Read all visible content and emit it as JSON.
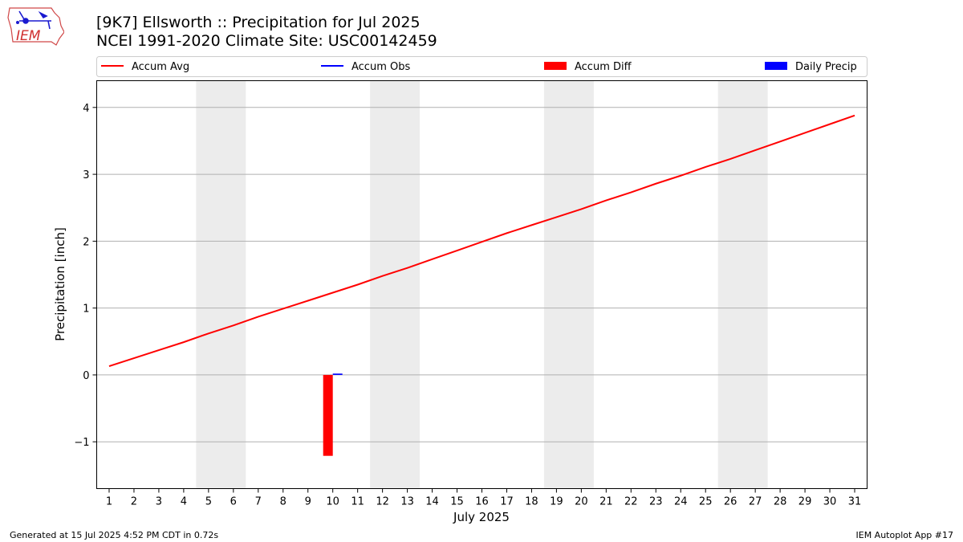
{
  "header": {
    "title_line1": "[9K7] Ellsworth :: Precipitation for Jul 2025",
    "title_line2": "NCEI 1991-2020 Climate Site: USC00142459"
  },
  "logo": {
    "text": "IEM"
  },
  "footer": {
    "generated": "Generated at 15 Jul 2025 4:52 PM CDT in 0.72s",
    "app": "IEM Autoplot App #17"
  },
  "colors": {
    "accum_avg": "#ff0000",
    "accum_obs": "#0000ff",
    "accum_diff": "#ff0000",
    "daily_precip": "#0000ff",
    "weekend_band": "#ececec",
    "grid": "#b0b0b0"
  },
  "chart_data": {
    "type": "line",
    "xlabel": "July 2025",
    "ylabel": "Precipitation [inch]",
    "xlim": [
      0.5,
      31.5
    ],
    "ylim": [
      -1.7,
      4.4
    ],
    "xticks": [
      1,
      2,
      3,
      4,
      5,
      6,
      7,
      8,
      9,
      10,
      11,
      12,
      13,
      14,
      15,
      16,
      17,
      18,
      19,
      20,
      21,
      22,
      23,
      24,
      25,
      26,
      27,
      28,
      29,
      30,
      31
    ],
    "yticks": [
      -1,
      0,
      1,
      2,
      3,
      4
    ],
    "ytick_labels": [
      "−1",
      "0",
      "1",
      "2",
      "3",
      "4"
    ],
    "grid": "horizontal",
    "legend_position": "top, above plot",
    "weekend_bands": [
      [
        5,
        6
      ],
      [
        12,
        13
      ],
      [
        19,
        20
      ],
      [
        26,
        27
      ]
    ],
    "series": [
      {
        "name": "Accum Avg",
        "kind": "line",
        "x": [
          1,
          2,
          3,
          4,
          5,
          6,
          7,
          8,
          9,
          10,
          11,
          12,
          13,
          14,
          15,
          16,
          17,
          18,
          19,
          20,
          21,
          22,
          23,
          24,
          25,
          26,
          27,
          28,
          29,
          30,
          31
        ],
        "values": [
          0.13,
          0.25,
          0.37,
          0.49,
          0.62,
          0.74,
          0.87,
          0.99,
          1.11,
          1.23,
          1.35,
          1.48,
          1.6,
          1.73,
          1.86,
          1.99,
          2.12,
          2.24,
          2.36,
          2.48,
          2.61,
          2.73,
          2.86,
          2.98,
          3.11,
          3.23,
          3.36,
          3.49,
          3.62,
          3.75,
          3.88
        ]
      },
      {
        "name": "Accum Obs",
        "kind": "line",
        "x": [],
        "values": []
      },
      {
        "name": "Accum Diff",
        "kind": "bar",
        "x": [
          10
        ],
        "values": [
          -1.21
        ]
      },
      {
        "name": "Daily Precip",
        "kind": "bar",
        "x": [
          10
        ],
        "values": [
          0.02
        ]
      }
    ]
  }
}
